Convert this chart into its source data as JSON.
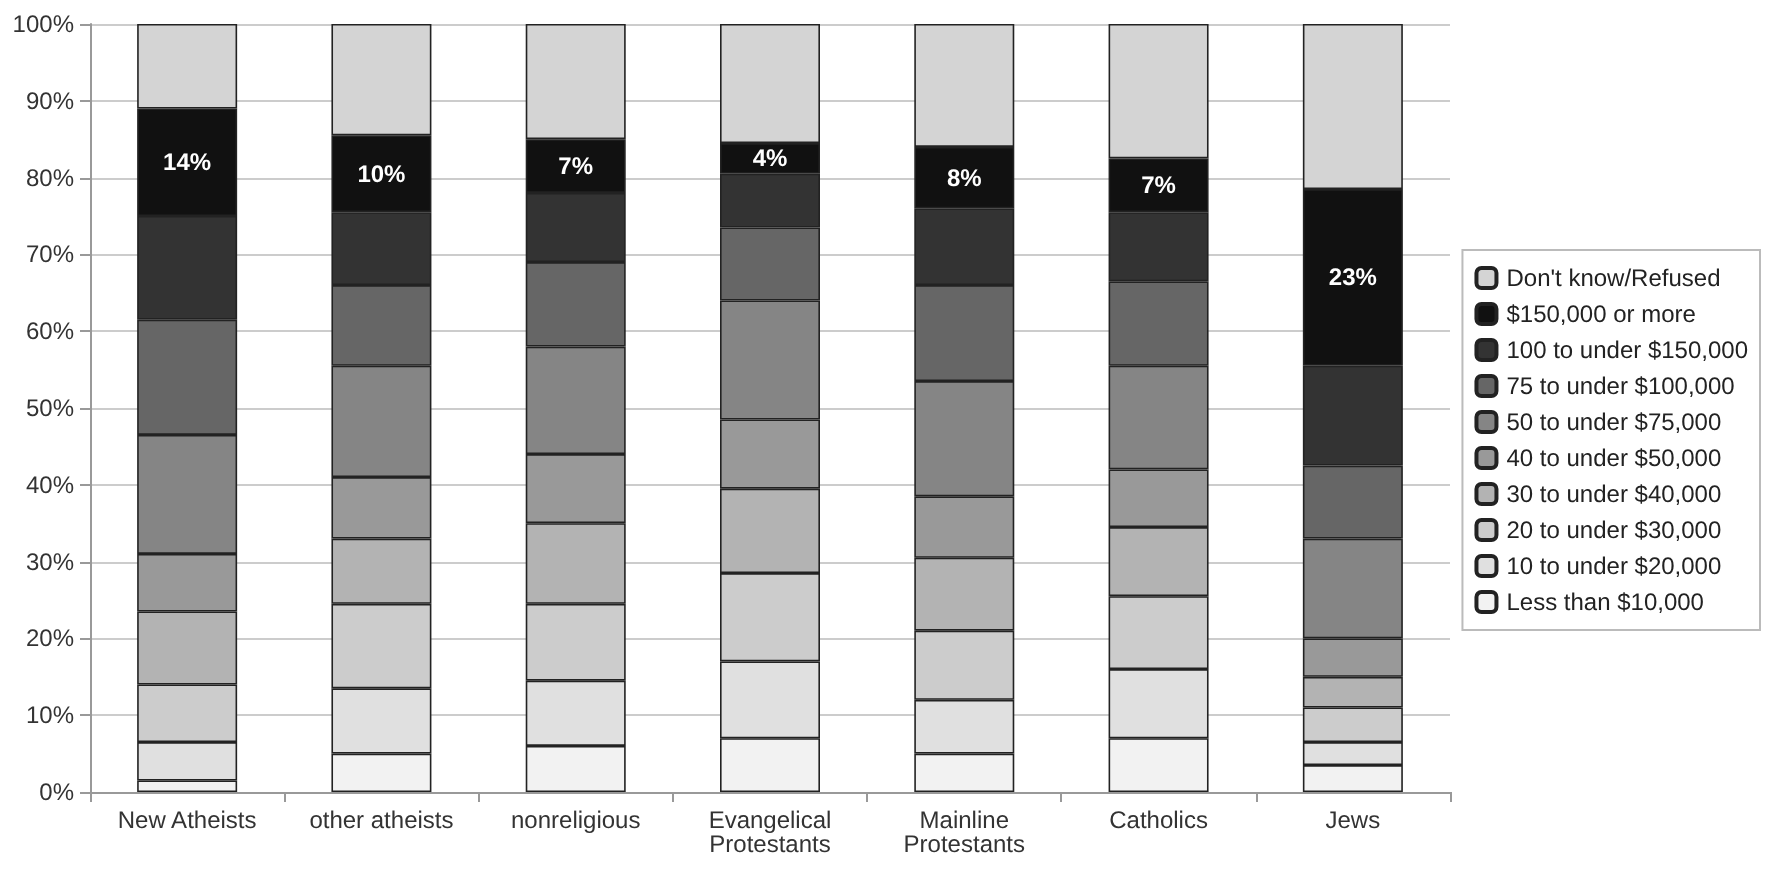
{
  "chart_data": {
    "type": "bar",
    "stacked": true,
    "categories": [
      "New Atheists",
      "other atheists",
      "nonreligious",
      "Evangelical\nProtestants",
      "Mainline\nProtestants",
      "Catholics",
      "Jews"
    ],
    "series": [
      {
        "name": "Less than $10,000",
        "color": "#f2f2f2",
        "values": [
          1.5,
          5,
          6,
          7,
          5,
          7,
          3.5
        ]
      },
      {
        "name": "10 to under $20,000",
        "color": "#e0e0e0",
        "values": [
          5,
          8.5,
          8.5,
          10,
          7,
          9,
          3
        ]
      },
      {
        "name": "20 to under $30,000",
        "color": "#cccccc",
        "values": [
          7.5,
          11,
          10,
          11.5,
          9,
          9.5,
          4.5
        ]
      },
      {
        "name": "30 to under $40,000",
        "color": "#b3b3b3",
        "values": [
          9.5,
          8.5,
          10.5,
          11,
          9.5,
          9,
          4
        ]
      },
      {
        "name": "40 to under $50,000",
        "color": "#999999",
        "values": [
          7.5,
          8,
          9,
          9,
          8,
          7.5,
          5
        ]
      },
      {
        "name": "50 to under $75,000",
        "color": "#858585",
        "values": [
          15.5,
          14.5,
          14,
          15.5,
          15,
          13.5,
          13
        ]
      },
      {
        "name": "75 to under $100,000",
        "color": "#666666",
        "values": [
          15,
          10.5,
          11,
          9.5,
          12.5,
          11,
          9.5
        ]
      },
      {
        "name": "100 to under $150,000",
        "color": "#333333",
        "values": [
          13.5,
          9.5,
          9,
          7,
          10,
          9,
          13
        ]
      },
      {
        "name": "$150,000 or more",
        "color": "#111111",
        "values": [
          14,
          10,
          7,
          4,
          8,
          7,
          23
        ],
        "value_labels": [
          "14%",
          "10%",
          "7%",
          "4%",
          "8%",
          "7%",
          "23%"
        ]
      },
      {
        "name": "Don't know/Refused",
        "color": "#d4d4d4",
        "values": [
          11,
          14.5,
          15,
          15.5,
          16,
          17.5,
          21.5
        ]
      }
    ],
    "ylim": [
      0,
      100
    ],
    "yticks": [
      {
        "value": 0,
        "label": "0%"
      },
      {
        "value": 10,
        "label": "10%"
      },
      {
        "value": 20,
        "label": "20%"
      },
      {
        "value": 30,
        "label": "30%"
      },
      {
        "value": 40,
        "label": "40%"
      },
      {
        "value": 50,
        "label": "50%"
      },
      {
        "value": 60,
        "label": "60%"
      },
      {
        "value": 70,
        "label": "70%"
      },
      {
        "value": 80,
        "label": "80%"
      },
      {
        "value": 90,
        "label": "90%"
      },
      {
        "value": 100,
        "label": "100%"
      }
    ],
    "grid": "y",
    "legend": "right"
  }
}
